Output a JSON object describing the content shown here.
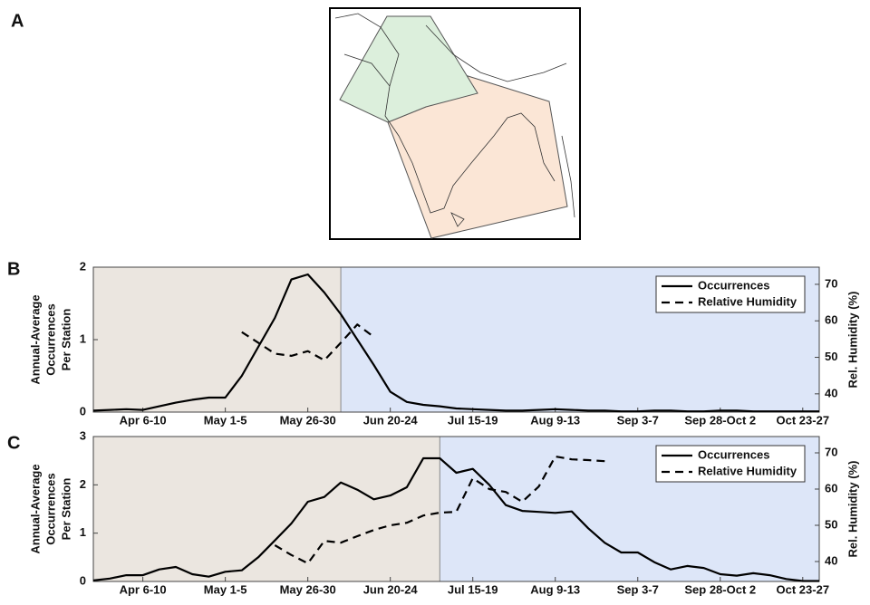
{
  "panel_labels": [
    "A",
    "B",
    "C"
  ],
  "chart_data": [
    {
      "type": "line",
      "ylabel": [
        "Annual-Average",
        "Occurrences",
        "Per Station"
      ],
      "y2label": "Rel. Humidity (%)",
      "x": [
        0,
        1,
        2,
        3,
        4,
        5,
        6,
        7,
        8,
        9,
        10,
        11,
        12,
        13,
        14,
        15,
        16,
        17,
        18,
        19,
        20,
        21,
        22,
        23,
        24,
        25,
        26,
        27,
        28,
        29,
        30,
        31,
        32,
        33,
        34,
        35,
        36,
        37,
        38,
        39,
        40,
        41,
        42,
        43,
        44
      ],
      "xlim": [
        0,
        44
      ],
      "xticks": [
        {
          "value": 3,
          "label": "Apr 6-10"
        },
        {
          "value": 8,
          "label": "May 1-5"
        },
        {
          "value": 13,
          "label": "May 26-30"
        },
        {
          "value": 18,
          "label": "Jun 20-24"
        },
        {
          "value": 23,
          "label": "Jul 15-19"
        },
        {
          "value": 28,
          "label": "Aug 9-13"
        },
        {
          "value": 33,
          "label": "Sep 3-7"
        },
        {
          "value": 38,
          "label": "Sep 28-Oct 2"
        },
        {
          "value": 43,
          "label": "Oct 23-27"
        }
      ],
      "ylim": [
        0,
        2
      ],
      "yticks": [
        0,
        1,
        2
      ],
      "y2lim": [
        35,
        74.7
      ],
      "y2ticks": [
        40,
        50,
        60,
        70
      ],
      "regions": [
        {
          "from": 0,
          "to": 15,
          "color": "#ebe6e0"
        },
        {
          "from": 15,
          "to": 44,
          "color": "#dde6f8"
        }
      ],
      "legend": "upper right",
      "series": [
        {
          "name": "Occurrences",
          "color": "#000000",
          "dash": "solid",
          "values": [
            0.02,
            0.03,
            0.04,
            0.03,
            0.08,
            0.13,
            0.17,
            0.2,
            0.2,
            0.5,
            0.9,
            1.3,
            1.83,
            1.9,
            1.65,
            1.35,
            1.0,
            0.65,
            0.28,
            0.14,
            0.1,
            0.08,
            0.05,
            0.04,
            0.03,
            0.02,
            0.02,
            0.03,
            0.04,
            0.03,
            0.02,
            0.02,
            0.01,
            0.01,
            0.02,
            0.02,
            0.01,
            0.01,
            0.02,
            0.02,
            0.01,
            0.01,
            0.01,
            0.01,
            0.01
          ]
        },
        {
          "name": "Relative Humidity",
          "color": "#000000",
          "dash": "dashed",
          "axis": "y2",
          "values": [
            null,
            null,
            null,
            null,
            null,
            null,
            null,
            null,
            null,
            56.9,
            54,
            51,
            50.4,
            51.7,
            49.2,
            54,
            59,
            55.6,
            null,
            null,
            null,
            null,
            null,
            null,
            null,
            null,
            null,
            null,
            null,
            null,
            null,
            null,
            null,
            null,
            null,
            null,
            null,
            null,
            null,
            null,
            null,
            null,
            null,
            null,
            null
          ]
        }
      ]
    },
    {
      "type": "line",
      "ylabel": [
        "Annual-Average",
        "Occurrences",
        "Per Station"
      ],
      "y2label": "Rel. Humidity (%)",
      "x": [
        0,
        1,
        2,
        3,
        4,
        5,
        6,
        7,
        8,
        9,
        10,
        11,
        12,
        13,
        14,
        15,
        16,
        17,
        18,
        19,
        20,
        21,
        22,
        23,
        24,
        25,
        26,
        27,
        28,
        29,
        30,
        31,
        32,
        33,
        34,
        35,
        36,
        37,
        38,
        39,
        40,
        41,
        42,
        43,
        44
      ],
      "xlim": [
        0,
        44
      ],
      "xticks": [
        {
          "value": 3,
          "label": "Apr 6-10"
        },
        {
          "value": 8,
          "label": "May 1-5"
        },
        {
          "value": 13,
          "label": "May 26-30"
        },
        {
          "value": 18,
          "label": "Jun 20-24"
        },
        {
          "value": 23,
          "label": "Jul 15-19"
        },
        {
          "value": 28,
          "label": "Aug 9-13"
        },
        {
          "value": 33,
          "label": "Sep 3-7"
        },
        {
          "value": 38,
          "label": "Sep 28-Oct 2"
        },
        {
          "value": 43,
          "label": "Oct 23-27"
        }
      ],
      "ylim": [
        0,
        3
      ],
      "yticks": [
        0,
        1,
        2,
        3
      ],
      "y2lim": [
        34.5,
        74.5
      ],
      "y2ticks": [
        40,
        50,
        60,
        70
      ],
      "regions": [
        {
          "from": 0,
          "to": 21,
          "color": "#ebe6e0"
        },
        {
          "from": 21,
          "to": 44,
          "color": "#dde6f8"
        }
      ],
      "legend": "upper right",
      "series": [
        {
          "name": "Occurrences",
          "color": "#000000",
          "dash": "solid",
          "values": [
            0.02,
            0.06,
            0.13,
            0.13,
            0.25,
            0.3,
            0.15,
            0.1,
            0.2,
            0.23,
            0.5,
            0.85,
            1.2,
            1.65,
            1.75,
            2.05,
            1.9,
            1.7,
            1.78,
            1.95,
            2.55,
            2.55,
            2.25,
            2.33,
            2.0,
            1.58,
            1.46,
            1.44,
            1.42,
            1.45,
            1.1,
            0.8,
            0.6,
            0.6,
            0.4,
            0.25,
            0.32,
            0.28,
            0.15,
            0.12,
            0.17,
            0.13,
            0.05,
            0.01,
            0.01
          ]
        },
        {
          "name": "Relative Humidity",
          "color": "#000000",
          "dash": "dashed",
          "axis": "y2",
          "values": [
            null,
            null,
            null,
            null,
            null,
            null,
            null,
            null,
            null,
            null,
            null,
            44.5,
            41.8,
            39.5,
            45.7,
            45.2,
            47,
            48.7,
            50,
            50.7,
            52.7,
            53.5,
            53.7,
            63,
            60,
            59.2,
            56.5,
            60.7,
            69,
            68.2,
            68,
            67.7,
            null,
            null,
            null,
            null,
            null,
            null,
            null,
            null,
            null,
            null,
            null,
            null,
            null
          ]
        }
      ]
    }
  ]
}
